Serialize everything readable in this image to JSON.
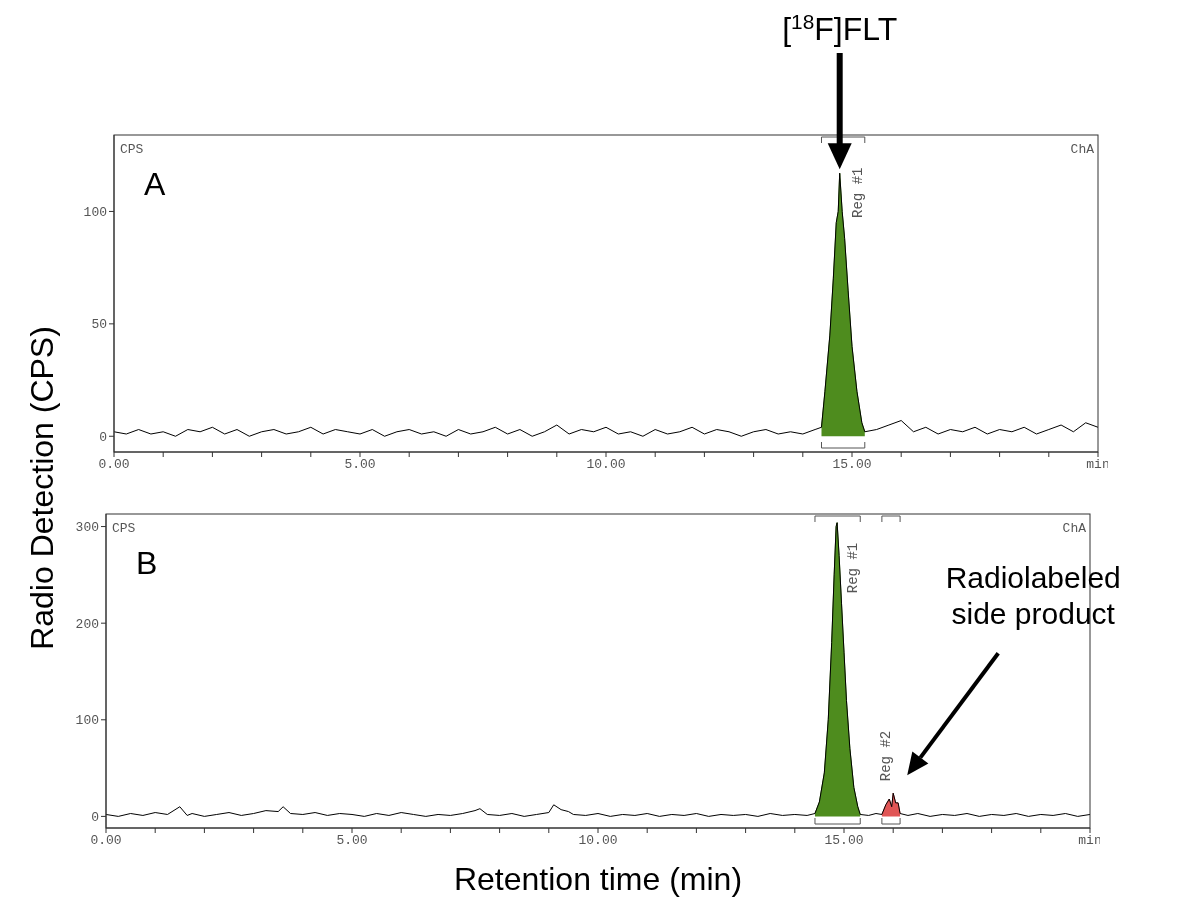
{
  "chart_data": [
    {
      "type": "line",
      "ylabel": "Radio Detection (CPS)",
      "xlim": [
        0,
        20
      ],
      "ylim": [
        -7,
        134
      ],
      "xticks": [
        {
          "value": 0,
          "label": "0.00"
        },
        {
          "value": 1,
          "label": null
        },
        {
          "value": 2,
          "label": null
        },
        {
          "value": 3,
          "label": null
        },
        {
          "value": 4,
          "label": null
        },
        {
          "value": 5,
          "label": "5.00"
        },
        {
          "value": 6,
          "label": null
        },
        {
          "value": 7,
          "label": null
        },
        {
          "value": 8,
          "label": null
        },
        {
          "value": 9,
          "label": null
        },
        {
          "value": 10,
          "label": "10.00"
        },
        {
          "value": 11,
          "label": null
        },
        {
          "value": 12,
          "label": null
        },
        {
          "value": 13,
          "label": null
        },
        {
          "value": 14,
          "label": null
        },
        {
          "value": 15,
          "label": "15.00"
        },
        {
          "value": 16,
          "label": null
        },
        {
          "value": 17,
          "label": null
        },
        {
          "value": 18,
          "label": null
        },
        {
          "value": 19,
          "label": null
        },
        {
          "value": 20,
          "label": "min"
        }
      ],
      "yticks": [
        0,
        50,
        100
      ],
      "series": [
        {
          "type": "area",
          "color": "#4e8c1e",
          "x": [
            14.38,
            14.45,
            14.55,
            14.62,
            14.68,
            14.72,
            14.75,
            14.8,
            14.85,
            14.92,
            15.0,
            15.1,
            15.2,
            15.26
          ],
          "values": [
            4,
            20,
            45,
            70,
            95,
            100,
            117,
            100,
            88,
            65,
            40,
            20,
            6,
            2
          ]
        },
        {
          "color": "#000000",
          "x": [
            0,
            0.25,
            0.5,
            0.75,
            1,
            1.25,
            1.5,
            1.75,
            2,
            2.25,
            2.5,
            2.75,
            3,
            3.25,
            3.5,
            3.75,
            4,
            4.25,
            4.5,
            4.75,
            5,
            5.25,
            5.5,
            5.75,
            6,
            6.25,
            6.5,
            6.75,
            7,
            7.25,
            7.5,
            7.75,
            8,
            8.25,
            8.5,
            8.75,
            9,
            9.25,
            9.5,
            9.75,
            10,
            10.25,
            10.5,
            10.75,
            11,
            11.25,
            11.5,
            11.75,
            12,
            12.25,
            12.5,
            12.75,
            13,
            13.25,
            13.5,
            13.75,
            14,
            14.25,
            14.38,
            14.45,
            14.55,
            14.62,
            14.68,
            14.72,
            14.75,
            14.8,
            14.85,
            14.92,
            15.0,
            15.1,
            15.2,
            15.26,
            15.5,
            15.75,
            16,
            16.25,
            16.5,
            16.75,
            17,
            17.25,
            17.5,
            17.75,
            18,
            18.25,
            18.5,
            18.75,
            19,
            19.25,
            19.5,
            19.75,
            20
          ],
          "values": [
            2,
            1,
            3,
            1,
            2,
            0,
            3,
            2,
            4,
            1,
            3,
            0,
            2,
            3,
            1,
            2,
            4,
            1,
            3,
            2,
            1,
            3,
            0,
            2,
            3,
            1,
            2,
            0,
            3,
            1,
            2,
            4,
            1,
            3,
            0,
            2,
            5,
            1,
            3,
            2,
            4,
            1,
            2,
            0,
            3,
            1,
            2,
            4,
            1,
            3,
            2,
            0,
            2,
            3,
            1,
            2,
            1,
            3,
            4,
            20,
            45,
            70,
            95,
            100,
            117,
            100,
            88,
            65,
            40,
            20,
            6,
            2,
            3,
            5,
            7,
            2,
            4,
            1,
            3,
            2,
            4,
            1,
            3,
            2,
            4,
            1,
            3,
            5,
            2,
            6,
            4
          ]
        }
      ],
      "annotations": [
        "CPS",
        "ChA",
        "A",
        "Reg #1",
        "[$^{18}$F]FLT"
      ]
    },
    {
      "type": "line",
      "xlabel": "Retention time (min)",
      "xlim": [
        0,
        20
      ],
      "ylim": [
        -12,
        313
      ],
      "xticks": [
        {
          "value": 0,
          "label": "0.00"
        },
        {
          "value": 1,
          "label": null
        },
        {
          "value": 2,
          "label": null
        },
        {
          "value": 3,
          "label": null
        },
        {
          "value": 4,
          "label": null
        },
        {
          "value": 5,
          "label": "5.00"
        },
        {
          "value": 6,
          "label": null
        },
        {
          "value": 7,
          "label": null
        },
        {
          "value": 8,
          "label": null
        },
        {
          "value": 9,
          "label": null
        },
        {
          "value": 10,
          "label": "10.00"
        },
        {
          "value": 11,
          "label": null
        },
        {
          "value": 12,
          "label": null
        },
        {
          "value": 13,
          "label": null
        },
        {
          "value": 14,
          "label": null
        },
        {
          "value": 15,
          "label": "15.00"
        },
        {
          "value": 16,
          "label": null
        },
        {
          "value": 17,
          "label": null
        },
        {
          "value": 18,
          "label": null
        },
        {
          "value": 19,
          "label": null
        },
        {
          "value": 20,
          "label": "min"
        }
      ],
      "yticks": [
        0,
        100,
        200,
        300
      ],
      "series": [
        {
          "type": "area",
          "color": "#4e8c1e",
          "x": [
            14.41,
            14.5,
            14.6,
            14.68,
            14.75,
            14.8,
            14.84,
            14.86,
            14.9,
            14.95,
            15.0,
            15.05,
            15.12,
            15.2,
            15.28,
            15.33
          ],
          "values": [
            3,
            15,
            45,
            100,
            180,
            250,
            300,
            304,
            270,
            220,
            170,
            120,
            70,
            30,
            10,
            2
          ]
        },
        {
          "type": "area",
          "color": "#e05555",
          "x": [
            15.77,
            15.85,
            15.92,
            15.97,
            16.0,
            16.05,
            16.1,
            16.14
          ],
          "values": [
            2,
            12,
            18,
            10,
            24,
            14,
            14,
            3
          ]
        },
        {
          "color": "#000000",
          "x": [
            0,
            0.25,
            0.5,
            0.75,
            1,
            1.25,
            1.5,
            1.65,
            1.75,
            2,
            2.25,
            2.5,
            2.75,
            3,
            3.25,
            3.5,
            3.6,
            3.75,
            4,
            4.25,
            4.5,
            4.75,
            5,
            5.25,
            5.5,
            5.75,
            6,
            6.25,
            6.5,
            6.75,
            7,
            7.25,
            7.5,
            7.6,
            7.75,
            8,
            8.25,
            8.5,
            8.75,
            9,
            9.1,
            9.25,
            9.4,
            9.5,
            9.75,
            10,
            10.25,
            10.5,
            10.75,
            11,
            11.25,
            11.5,
            11.75,
            12,
            12.25,
            12.5,
            12.75,
            13,
            13.25,
            13.5,
            13.75,
            14,
            14.25,
            14.41,
            14.5,
            14.6,
            14.68,
            14.75,
            14.8,
            14.84,
            14.86,
            14.9,
            14.95,
            15.0,
            15.05,
            15.12,
            15.2,
            15.28,
            15.33,
            15.5,
            15.65,
            15.77,
            15.85,
            15.92,
            15.97,
            16.0,
            16.05,
            16.1,
            16.14,
            16.3,
            16.5,
            16.75,
            17,
            17.25,
            17.5,
            17.75,
            18,
            18.25,
            18.5,
            18.75,
            19,
            19.25,
            19.5,
            19.75,
            20
          ],
          "values": [
            2,
            0,
            3,
            1,
            4,
            2,
            10,
            1,
            3,
            0,
            2,
            4,
            1,
            3,
            6,
            5,
            10,
            3,
            2,
            4,
            1,
            3,
            2,
            0,
            3,
            1,
            4,
            2,
            0,
            2,
            1,
            3,
            6,
            8,
            2,
            1,
            3,
            0,
            2,
            4,
            12,
            7,
            5,
            2,
            1,
            3,
            0,
            2,
            1,
            3,
            0,
            2,
            1,
            3,
            0,
            2,
            1,
            2,
            0,
            3,
            1,
            2,
            1,
            3,
            15,
            45,
            100,
            180,
            250,
            300,
            304,
            270,
            220,
            170,
            120,
            70,
            30,
            10,
            2,
            1,
            3,
            2,
            12,
            18,
            10,
            24,
            14,
            14,
            3,
            1,
            3,
            0,
            2,
            1,
            3,
            0,
            2,
            1,
            3,
            0,
            2,
            1,
            3,
            0,
            2
          ]
        }
      ],
      "annotations": [
        "CPS",
        "ChA",
        "B",
        "Reg #1",
        "Reg #2",
        "Radiolabeled side product"
      ]
    }
  ]
}
